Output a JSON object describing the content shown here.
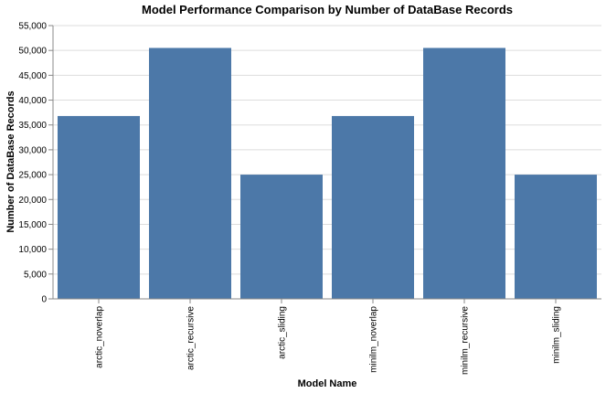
{
  "chart_data": {
    "type": "bar",
    "title": "Model Performance Comparison by Number of DataBase Records",
    "xlabel": "Model Name",
    "ylabel": "Number of DataBase Records",
    "categories": [
      "arctic_noverlap",
      "arctic_recursive",
      "arctic_sliding",
      "minilm_noverlap",
      "minilm_recursive",
      "minilm_sliding"
    ],
    "values": [
      36800,
      50500,
      25000,
      36800,
      50500,
      25000
    ],
    "ylim": [
      0,
      55000
    ],
    "yticks": [
      0,
      5000,
      10000,
      15000,
      20000,
      25000,
      30000,
      35000,
      40000,
      45000,
      50000,
      55000
    ],
    "ytick_labels": [
      "0",
      "5,000",
      "10,000",
      "15,000",
      "20,000",
      "25,000",
      "30,000",
      "35,000",
      "40,000",
      "45,000",
      "50,000",
      "55,000"
    ],
    "grid": true,
    "bar_color": "#4c78a8"
  }
}
